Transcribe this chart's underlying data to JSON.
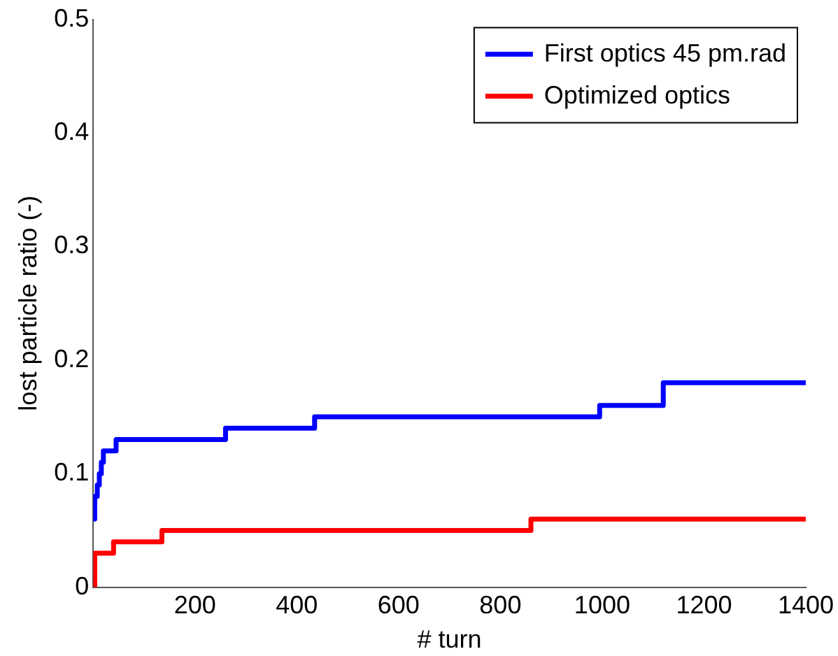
{
  "chart_data": {
    "type": "step",
    "xlabel": "# turn",
    "ylabel": "lost particle ratio (-)",
    "xlim": [
      0,
      1400
    ],
    "xticks": [
      200,
      400,
      600,
      800,
      1000,
      1200,
      1400
    ],
    "ylim": [
      0,
      0.5
    ],
    "yticks": [
      0,
      0.1,
      0.2,
      0.3,
      0.4,
      0.5
    ],
    "grid": false,
    "legend": "top right",
    "marker": "none",
    "line_style": "solid",
    "series": [
      {
        "name": "First optics 45 pm.rad",
        "color": "#0000ff",
        "x": [
          0,
          3,
          8,
          12,
          16,
          20,
          45,
          260,
          435,
          995,
          1120,
          1400
        ],
        "values": [
          0.06,
          0.08,
          0.09,
          0.1,
          0.11,
          0.12,
          0.13,
          0.14,
          0.15,
          0.16,
          0.18,
          0.18
        ]
      },
      {
        "name": "Optimized optics",
        "color": "#ff0000",
        "x": [
          0,
          3,
          40,
          135,
          860,
          1400
        ],
        "values": [
          0,
          0.03,
          0.04,
          0.05,
          0.06,
          0.06
        ]
      }
    ]
  }
}
